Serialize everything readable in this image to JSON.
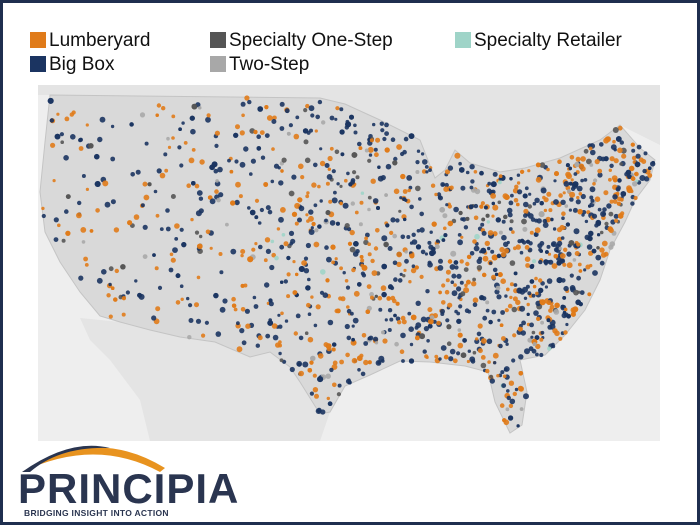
{
  "legend": {
    "items": [
      {
        "name": "Lumberyard",
        "color": "#e07b1a"
      },
      {
        "name": "Big Box",
        "color": "#1b3461"
      },
      {
        "name": "Specialty One-Step",
        "color": "#555555"
      },
      {
        "name": "Two-Step",
        "color": "#a8a8a8"
      },
      {
        "name": "Specialty Retailer",
        "color": "#9fd4c8"
      }
    ]
  },
  "logo": {
    "name": "PRINCIPIA",
    "tagline": "BRIDGING INSIGHT INTO ACTION"
  }
}
